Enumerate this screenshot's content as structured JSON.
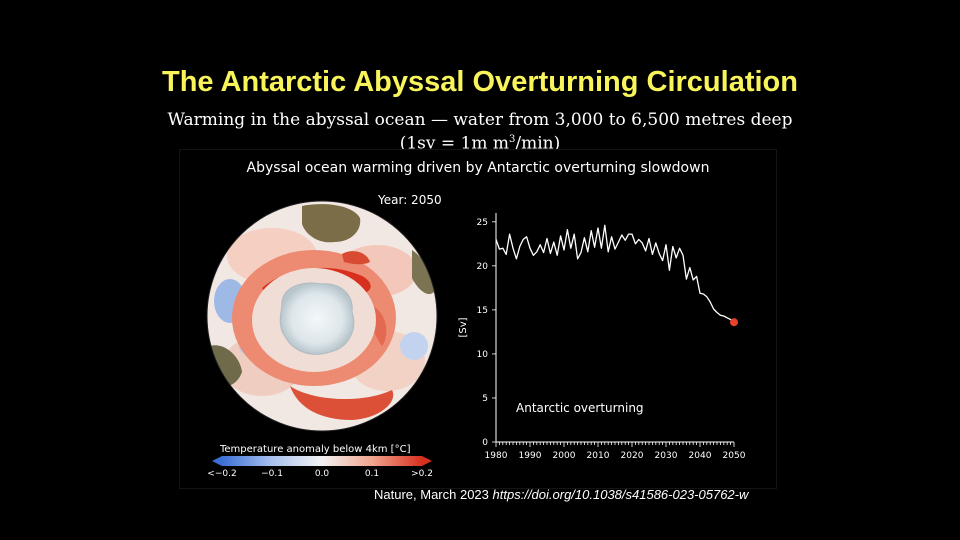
{
  "slide": {
    "title": "The Antarctic Abyssal Overturning Circulation",
    "subtitle_line1": "Warming in the abyssal ocean — water from 3,000 to 6,500 metres deep",
    "subtitle_line2_pre": "(1sv = 1m m",
    "subtitle_line2_sup": "3",
    "subtitle_line2_post": "/min)",
    "citation_source": "Nature, March 2023",
    "citation_doi": "https://doi.org/10.1038/s41586-023-05762-w"
  },
  "figure": {
    "title": "Abyssal ocean warming driven by Antarctic overturning slowdown",
    "year_label": "Year: 2050",
    "map": {
      "colorbar_label": "Temperature anomaly below 4km [°C]",
      "colorbar_ticks": [
        "<−0.2",
        "−0.1",
        "0.0",
        "0.1",
        ">0.2"
      ],
      "colors": {
        "cold": "#3b6fd4",
        "neutral": "#f2f2f2",
        "warm": "#d7301f",
        "land": "#8a7a55",
        "ice": "#e8eef2"
      }
    }
  },
  "chart_data": {
    "type": "line",
    "annotation": "Antarctic overturning",
    "ylabel": "[Sv]",
    "xlim": [
      1980,
      2050
    ],
    "ylim": [
      0,
      26
    ],
    "x_ticks": [
      1980,
      1990,
      2000,
      2010,
      2020,
      2030,
      2040,
      2050
    ],
    "y_ticks": [
      0,
      5,
      10,
      15,
      20,
      25
    ],
    "line_color": "#ffffff",
    "endpoint_color": "#e8412c",
    "x": [
      1980,
      1981,
      1982,
      1983,
      1984,
      1985,
      1986,
      1987,
      1988,
      1989,
      1990,
      1991,
      1992,
      1993,
      1994,
      1995,
      1996,
      1997,
      1998,
      1999,
      2000,
      2001,
      2002,
      2003,
      2004,
      2005,
      2006,
      2007,
      2008,
      2009,
      2010,
      2011,
      2012,
      2013,
      2014,
      2015,
      2016,
      2017,
      2018,
      2019,
      2020,
      2021,
      2022,
      2023,
      2024,
      2025,
      2026,
      2027,
      2028,
      2029,
      2030,
      2031,
      2032,
      2033,
      2034,
      2035,
      2036,
      2037,
      2038,
      2039,
      2040,
      2041,
      2042,
      2043,
      2044,
      2045,
      2046,
      2047,
      2048,
      2049,
      2050
    ],
    "values": [
      23.0,
      21.9,
      22.0,
      21.3,
      23.6,
      22.0,
      20.8,
      22.2,
      23.0,
      23.3,
      22.0,
      21.2,
      21.6,
      22.4,
      21.5,
      23.1,
      21.4,
      22.7,
      21.2,
      23.4,
      21.8,
      24.1,
      22.0,
      23.6,
      20.8,
      21.5,
      23.2,
      21.6,
      24.0,
      22.1,
      24.3,
      22.0,
      24.6,
      21.6,
      23.3,
      21.9,
      22.7,
      23.5,
      22.9,
      23.6,
      23.6,
      22.5,
      23.0,
      22.6,
      21.7,
      23.1,
      21.3,
      22.6,
      21.4,
      20.6,
      22.4,
      19.5,
      22.2,
      20.9,
      22.0,
      21.2,
      18.5,
      19.8,
      18.4,
      18.8,
      16.9,
      16.8,
      16.5,
      15.9,
      15.1,
      14.7,
      14.4,
      14.3,
      14.1,
      13.9,
      13.6
    ]
  }
}
